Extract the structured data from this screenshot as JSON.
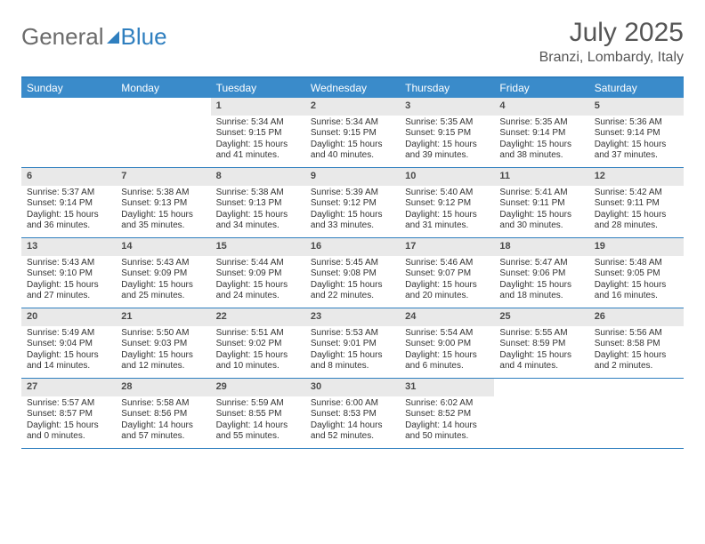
{
  "brand": {
    "part1": "General",
    "part2": "Blue"
  },
  "title": "July 2025",
  "location": "Branzi, Lombardy, Italy",
  "colors": {
    "header_bg": "#3a8bca",
    "border": "#2f7fbf",
    "daynum_bg": "#e9e9e9",
    "text": "#333333",
    "title_text": "#555555"
  },
  "dayNames": [
    "Sunday",
    "Monday",
    "Tuesday",
    "Wednesday",
    "Thursday",
    "Friday",
    "Saturday"
  ],
  "weeks": [
    [
      null,
      null,
      {
        "n": "1",
        "sunrise": "5:34 AM",
        "sunset": "9:15 PM",
        "daylight": "15 hours and 41 minutes."
      },
      {
        "n": "2",
        "sunrise": "5:34 AM",
        "sunset": "9:15 PM",
        "daylight": "15 hours and 40 minutes."
      },
      {
        "n": "3",
        "sunrise": "5:35 AM",
        "sunset": "9:15 PM",
        "daylight": "15 hours and 39 minutes."
      },
      {
        "n": "4",
        "sunrise": "5:35 AM",
        "sunset": "9:14 PM",
        "daylight": "15 hours and 38 minutes."
      },
      {
        "n": "5",
        "sunrise": "5:36 AM",
        "sunset": "9:14 PM",
        "daylight": "15 hours and 37 minutes."
      }
    ],
    [
      {
        "n": "6",
        "sunrise": "5:37 AM",
        "sunset": "9:14 PM",
        "daylight": "15 hours and 36 minutes."
      },
      {
        "n": "7",
        "sunrise": "5:38 AM",
        "sunset": "9:13 PM",
        "daylight": "15 hours and 35 minutes."
      },
      {
        "n": "8",
        "sunrise": "5:38 AM",
        "sunset": "9:13 PM",
        "daylight": "15 hours and 34 minutes."
      },
      {
        "n": "9",
        "sunrise": "5:39 AM",
        "sunset": "9:12 PM",
        "daylight": "15 hours and 33 minutes."
      },
      {
        "n": "10",
        "sunrise": "5:40 AM",
        "sunset": "9:12 PM",
        "daylight": "15 hours and 31 minutes."
      },
      {
        "n": "11",
        "sunrise": "5:41 AM",
        "sunset": "9:11 PM",
        "daylight": "15 hours and 30 minutes."
      },
      {
        "n": "12",
        "sunrise": "5:42 AM",
        "sunset": "9:11 PM",
        "daylight": "15 hours and 28 minutes."
      }
    ],
    [
      {
        "n": "13",
        "sunrise": "5:43 AM",
        "sunset": "9:10 PM",
        "daylight": "15 hours and 27 minutes."
      },
      {
        "n": "14",
        "sunrise": "5:43 AM",
        "sunset": "9:09 PM",
        "daylight": "15 hours and 25 minutes."
      },
      {
        "n": "15",
        "sunrise": "5:44 AM",
        "sunset": "9:09 PM",
        "daylight": "15 hours and 24 minutes."
      },
      {
        "n": "16",
        "sunrise": "5:45 AM",
        "sunset": "9:08 PM",
        "daylight": "15 hours and 22 minutes."
      },
      {
        "n": "17",
        "sunrise": "5:46 AM",
        "sunset": "9:07 PM",
        "daylight": "15 hours and 20 minutes."
      },
      {
        "n": "18",
        "sunrise": "5:47 AM",
        "sunset": "9:06 PM",
        "daylight": "15 hours and 18 minutes."
      },
      {
        "n": "19",
        "sunrise": "5:48 AM",
        "sunset": "9:05 PM",
        "daylight": "15 hours and 16 minutes."
      }
    ],
    [
      {
        "n": "20",
        "sunrise": "5:49 AM",
        "sunset": "9:04 PM",
        "daylight": "15 hours and 14 minutes."
      },
      {
        "n": "21",
        "sunrise": "5:50 AM",
        "sunset": "9:03 PM",
        "daylight": "15 hours and 12 minutes."
      },
      {
        "n": "22",
        "sunrise": "5:51 AM",
        "sunset": "9:02 PM",
        "daylight": "15 hours and 10 minutes."
      },
      {
        "n": "23",
        "sunrise": "5:53 AM",
        "sunset": "9:01 PM",
        "daylight": "15 hours and 8 minutes."
      },
      {
        "n": "24",
        "sunrise": "5:54 AM",
        "sunset": "9:00 PM",
        "daylight": "15 hours and 6 minutes."
      },
      {
        "n": "25",
        "sunrise": "5:55 AM",
        "sunset": "8:59 PM",
        "daylight": "15 hours and 4 minutes."
      },
      {
        "n": "26",
        "sunrise": "5:56 AM",
        "sunset": "8:58 PM",
        "daylight": "15 hours and 2 minutes."
      }
    ],
    [
      {
        "n": "27",
        "sunrise": "5:57 AM",
        "sunset": "8:57 PM",
        "daylight": "15 hours and 0 minutes."
      },
      {
        "n": "28",
        "sunrise": "5:58 AM",
        "sunset": "8:56 PM",
        "daylight": "14 hours and 57 minutes."
      },
      {
        "n": "29",
        "sunrise": "5:59 AM",
        "sunset": "8:55 PM",
        "daylight": "14 hours and 55 minutes."
      },
      {
        "n": "30",
        "sunrise": "6:00 AM",
        "sunset": "8:53 PM",
        "daylight": "14 hours and 52 minutes."
      },
      {
        "n": "31",
        "sunrise": "6:02 AM",
        "sunset": "8:52 PM",
        "daylight": "14 hours and 50 minutes."
      },
      null,
      null
    ]
  ],
  "labels": {
    "sunrise": "Sunrise:",
    "sunset": "Sunset:",
    "daylight": "Daylight:"
  }
}
